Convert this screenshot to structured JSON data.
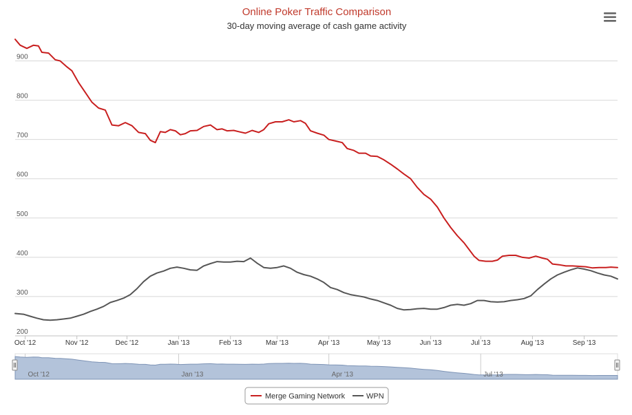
{
  "colors": {
    "background": "#ffffff",
    "title": "#c0392b",
    "merge": "#c81e1e",
    "wpn": "#555555",
    "grid": "#d8d8d8",
    "navigator_fill": "#b3c3da",
    "navigator_line": "#7d93b5",
    "legend_border": "#999999"
  },
  "menu": {
    "icon": "hamburger-menu-icon"
  },
  "chart_data": {
    "type": "line",
    "title": "Online Poker Traffic Comparison",
    "subtitle": "30-day moving average of cash game activity",
    "xlabel": "",
    "ylabel": "",
    "xlim": [
      "2012-09-25",
      "2013-09-21"
    ],
    "ylim": [
      200,
      950
    ],
    "y_ticks": [
      200,
      300,
      400,
      500,
      600,
      700,
      800,
      900
    ],
    "x_ticks": [
      {
        "label": "Oct '12",
        "date": "2012-10-01"
      },
      {
        "label": "Nov '12",
        "date": "2012-11-01"
      },
      {
        "label": "Dec '12",
        "date": "2012-12-01"
      },
      {
        "label": "Jan '13",
        "date": "2013-01-01"
      },
      {
        "label": "Feb '13",
        "date": "2013-02-01"
      },
      {
        "label": "Mar '13",
        "date": "2013-03-01"
      },
      {
        "label": "Apr '13",
        "date": "2013-04-01"
      },
      {
        "label": "May '13",
        "date": "2013-05-01"
      },
      {
        "label": "Jun '13",
        "date": "2013-06-01"
      },
      {
        "label": "Jul '13",
        "date": "2013-07-01"
      },
      {
        "label": "Aug '13",
        "date": "2013-08-01"
      },
      {
        "label": "Sep '13",
        "date": "2013-09-01"
      }
    ],
    "grid": true,
    "legend": {
      "position": "bottom-center"
    },
    "navigator": {
      "x_ticks": [
        {
          "label": "Oct '12",
          "date": "2012-10-01"
        },
        {
          "label": "Jan '13",
          "date": "2013-01-01"
        },
        {
          "label": "Apr '13",
          "date": "2013-04-01"
        },
        {
          "label": "Jul '13",
          "date": "2013-07-01"
        }
      ]
    },
    "series": [
      {
        "name": "Merge Gaming Network",
        "color": "#c81e1e",
        "points": [
          [
            "2012-09-25",
            955
          ],
          [
            "2012-09-28",
            940
          ],
          [
            "2012-10-02",
            932
          ],
          [
            "2012-10-06",
            940
          ],
          [
            "2012-10-09",
            938
          ],
          [
            "2012-10-11",
            922
          ],
          [
            "2012-10-15",
            920
          ],
          [
            "2012-10-19",
            903
          ],
          [
            "2012-10-22",
            900
          ],
          [
            "2012-10-26",
            885
          ],
          [
            "2012-10-29",
            875
          ],
          [
            "2012-11-02",
            845
          ],
          [
            "2012-11-06",
            820
          ],
          [
            "2012-11-10",
            795
          ],
          [
            "2012-11-14",
            780
          ],
          [
            "2012-11-18",
            775
          ],
          [
            "2012-11-22",
            737
          ],
          [
            "2012-11-26",
            735
          ],
          [
            "2012-11-30",
            743
          ],
          [
            "2012-12-04",
            735
          ],
          [
            "2012-12-08",
            718
          ],
          [
            "2012-12-12",
            715
          ],
          [
            "2012-12-15",
            698
          ],
          [
            "2012-12-18",
            692
          ],
          [
            "2012-12-21",
            720
          ],
          [
            "2012-12-24",
            718
          ],
          [
            "2012-12-27",
            725
          ],
          [
            "2012-12-30",
            722
          ],
          [
            "2013-01-02",
            712
          ],
          [
            "2013-01-05",
            715
          ],
          [
            "2013-01-08",
            722
          ],
          [
            "2013-01-12",
            723
          ],
          [
            "2013-01-16",
            733
          ],
          [
            "2013-01-20",
            737
          ],
          [
            "2013-01-24",
            725
          ],
          [
            "2013-01-27",
            727
          ],
          [
            "2013-01-30",
            722
          ],
          [
            "2013-02-03",
            723
          ],
          [
            "2013-02-06",
            720
          ],
          [
            "2013-02-10",
            716
          ],
          [
            "2013-02-14",
            723
          ],
          [
            "2013-02-18",
            718
          ],
          [
            "2013-02-21",
            725
          ],
          [
            "2013-02-24",
            740
          ],
          [
            "2013-02-28",
            745
          ],
          [
            "2013-03-04",
            745
          ],
          [
            "2013-03-08",
            750
          ],
          [
            "2013-03-11",
            745
          ],
          [
            "2013-03-15",
            748
          ],
          [
            "2013-03-18",
            741
          ],
          [
            "2013-03-21",
            722
          ],
          [
            "2013-03-25",
            716
          ],
          [
            "2013-03-29",
            711
          ],
          [
            "2013-04-01",
            700
          ],
          [
            "2013-04-05",
            696
          ],
          [
            "2013-04-09",
            692
          ],
          [
            "2013-04-12",
            677
          ],
          [
            "2013-04-16",
            672
          ],
          [
            "2013-04-19",
            665
          ],
          [
            "2013-04-23",
            665
          ],
          [
            "2013-04-26",
            658
          ],
          [
            "2013-04-30",
            657
          ],
          [
            "2013-05-04",
            648
          ],
          [
            "2013-05-08",
            637
          ],
          [
            "2013-05-12",
            625
          ],
          [
            "2013-05-16",
            612
          ],
          [
            "2013-05-20",
            600
          ],
          [
            "2013-05-24",
            578
          ],
          [
            "2013-05-28",
            560
          ],
          [
            "2013-06-01",
            548
          ],
          [
            "2013-06-05",
            528
          ],
          [
            "2013-06-09",
            500
          ],
          [
            "2013-06-13",
            476
          ],
          [
            "2013-06-17",
            455
          ],
          [
            "2013-06-21",
            437
          ],
          [
            "2013-06-24",
            420
          ],
          [
            "2013-06-27",
            403
          ],
          [
            "2013-06-30",
            392
          ],
          [
            "2013-07-04",
            390
          ],
          [
            "2013-07-08",
            390
          ],
          [
            "2013-07-11",
            393
          ],
          [
            "2013-07-14",
            403
          ],
          [
            "2013-07-18",
            405
          ],
          [
            "2013-07-22",
            405
          ],
          [
            "2013-07-26",
            400
          ],
          [
            "2013-07-30",
            398
          ],
          [
            "2013-08-03",
            403
          ],
          [
            "2013-08-07",
            398
          ],
          [
            "2013-08-10",
            395
          ],
          [
            "2013-08-13",
            383
          ],
          [
            "2013-08-17",
            381
          ],
          [
            "2013-08-21",
            378
          ],
          [
            "2013-08-25",
            378
          ],
          [
            "2013-08-29",
            377
          ],
          [
            "2013-09-02",
            376
          ],
          [
            "2013-09-06",
            373
          ],
          [
            "2013-09-10",
            374
          ],
          [
            "2013-09-14",
            374
          ],
          [
            "2013-09-17",
            375
          ],
          [
            "2013-09-21",
            374
          ]
        ]
      },
      {
        "name": "WPN",
        "color": "#555555",
        "points": [
          [
            "2012-09-25",
            257
          ],
          [
            "2012-09-30",
            255
          ],
          [
            "2012-10-04",
            250
          ],
          [
            "2012-10-08",
            245
          ],
          [
            "2012-10-12",
            241
          ],
          [
            "2012-10-16",
            240
          ],
          [
            "2012-10-20",
            241
          ],
          [
            "2012-10-24",
            243
          ],
          [
            "2012-10-28",
            245
          ],
          [
            "2012-11-01",
            250
          ],
          [
            "2012-11-05",
            255
          ],
          [
            "2012-11-09",
            262
          ],
          [
            "2012-11-13",
            268
          ],
          [
            "2012-11-17",
            275
          ],
          [
            "2012-11-21",
            285
          ],
          [
            "2012-11-25",
            290
          ],
          [
            "2012-11-29",
            296
          ],
          [
            "2012-12-03",
            305
          ],
          [
            "2012-12-07",
            320
          ],
          [
            "2012-12-11",
            338
          ],
          [
            "2012-12-15",
            352
          ],
          [
            "2012-12-19",
            360
          ],
          [
            "2012-12-23",
            365
          ],
          [
            "2012-12-27",
            372
          ],
          [
            "2012-12-31",
            375
          ],
          [
            "2013-01-04",
            372
          ],
          [
            "2013-01-08",
            368
          ],
          [
            "2013-01-12",
            367
          ],
          [
            "2013-01-16",
            378
          ],
          [
            "2013-01-20",
            384
          ],
          [
            "2013-01-24",
            389
          ],
          [
            "2013-01-28",
            388
          ],
          [
            "2013-02-01",
            388
          ],
          [
            "2013-02-05",
            390
          ],
          [
            "2013-02-09",
            389
          ],
          [
            "2013-02-13",
            398
          ],
          [
            "2013-02-17",
            385
          ],
          [
            "2013-02-21",
            374
          ],
          [
            "2013-02-25",
            372
          ],
          [
            "2013-03-01",
            374
          ],
          [
            "2013-03-05",
            378
          ],
          [
            "2013-03-09",
            372
          ],
          [
            "2013-03-13",
            362
          ],
          [
            "2013-03-17",
            356
          ],
          [
            "2013-03-21",
            352
          ],
          [
            "2013-03-25",
            345
          ],
          [
            "2013-03-29",
            336
          ],
          [
            "2013-04-02",
            323
          ],
          [
            "2013-04-06",
            318
          ],
          [
            "2013-04-10",
            310
          ],
          [
            "2013-04-14",
            305
          ],
          [
            "2013-04-18",
            302
          ],
          [
            "2013-04-22",
            299
          ],
          [
            "2013-04-26",
            294
          ],
          [
            "2013-04-30",
            290
          ],
          [
            "2013-05-04",
            284
          ],
          [
            "2013-05-08",
            278
          ],
          [
            "2013-05-12",
            270
          ],
          [
            "2013-05-16",
            266
          ],
          [
            "2013-05-20",
            267
          ],
          [
            "2013-05-24",
            269
          ],
          [
            "2013-05-28",
            270
          ],
          [
            "2013-06-01",
            268
          ],
          [
            "2013-06-05",
            268
          ],
          [
            "2013-06-09",
            272
          ],
          [
            "2013-06-13",
            278
          ],
          [
            "2013-06-17",
            280
          ],
          [
            "2013-06-21",
            278
          ],
          [
            "2013-06-25",
            282
          ],
          [
            "2013-06-29",
            290
          ],
          [
            "2013-07-03",
            290
          ],
          [
            "2013-07-07",
            287
          ],
          [
            "2013-07-11",
            286
          ],
          [
            "2013-07-15",
            287
          ],
          [
            "2013-07-19",
            290
          ],
          [
            "2013-07-23",
            292
          ],
          [
            "2013-07-27",
            295
          ],
          [
            "2013-07-31",
            302
          ],
          [
            "2013-08-04",
            318
          ],
          [
            "2013-08-08",
            332
          ],
          [
            "2013-08-12",
            345
          ],
          [
            "2013-08-16",
            355
          ],
          [
            "2013-08-20",
            362
          ],
          [
            "2013-08-24",
            368
          ],
          [
            "2013-08-28",
            373
          ],
          [
            "2013-09-01",
            370
          ],
          [
            "2013-09-05",
            366
          ],
          [
            "2013-09-09",
            360
          ],
          [
            "2013-09-13",
            355
          ],
          [
            "2013-09-17",
            352
          ],
          [
            "2013-09-21",
            345
          ]
        ]
      }
    ]
  }
}
